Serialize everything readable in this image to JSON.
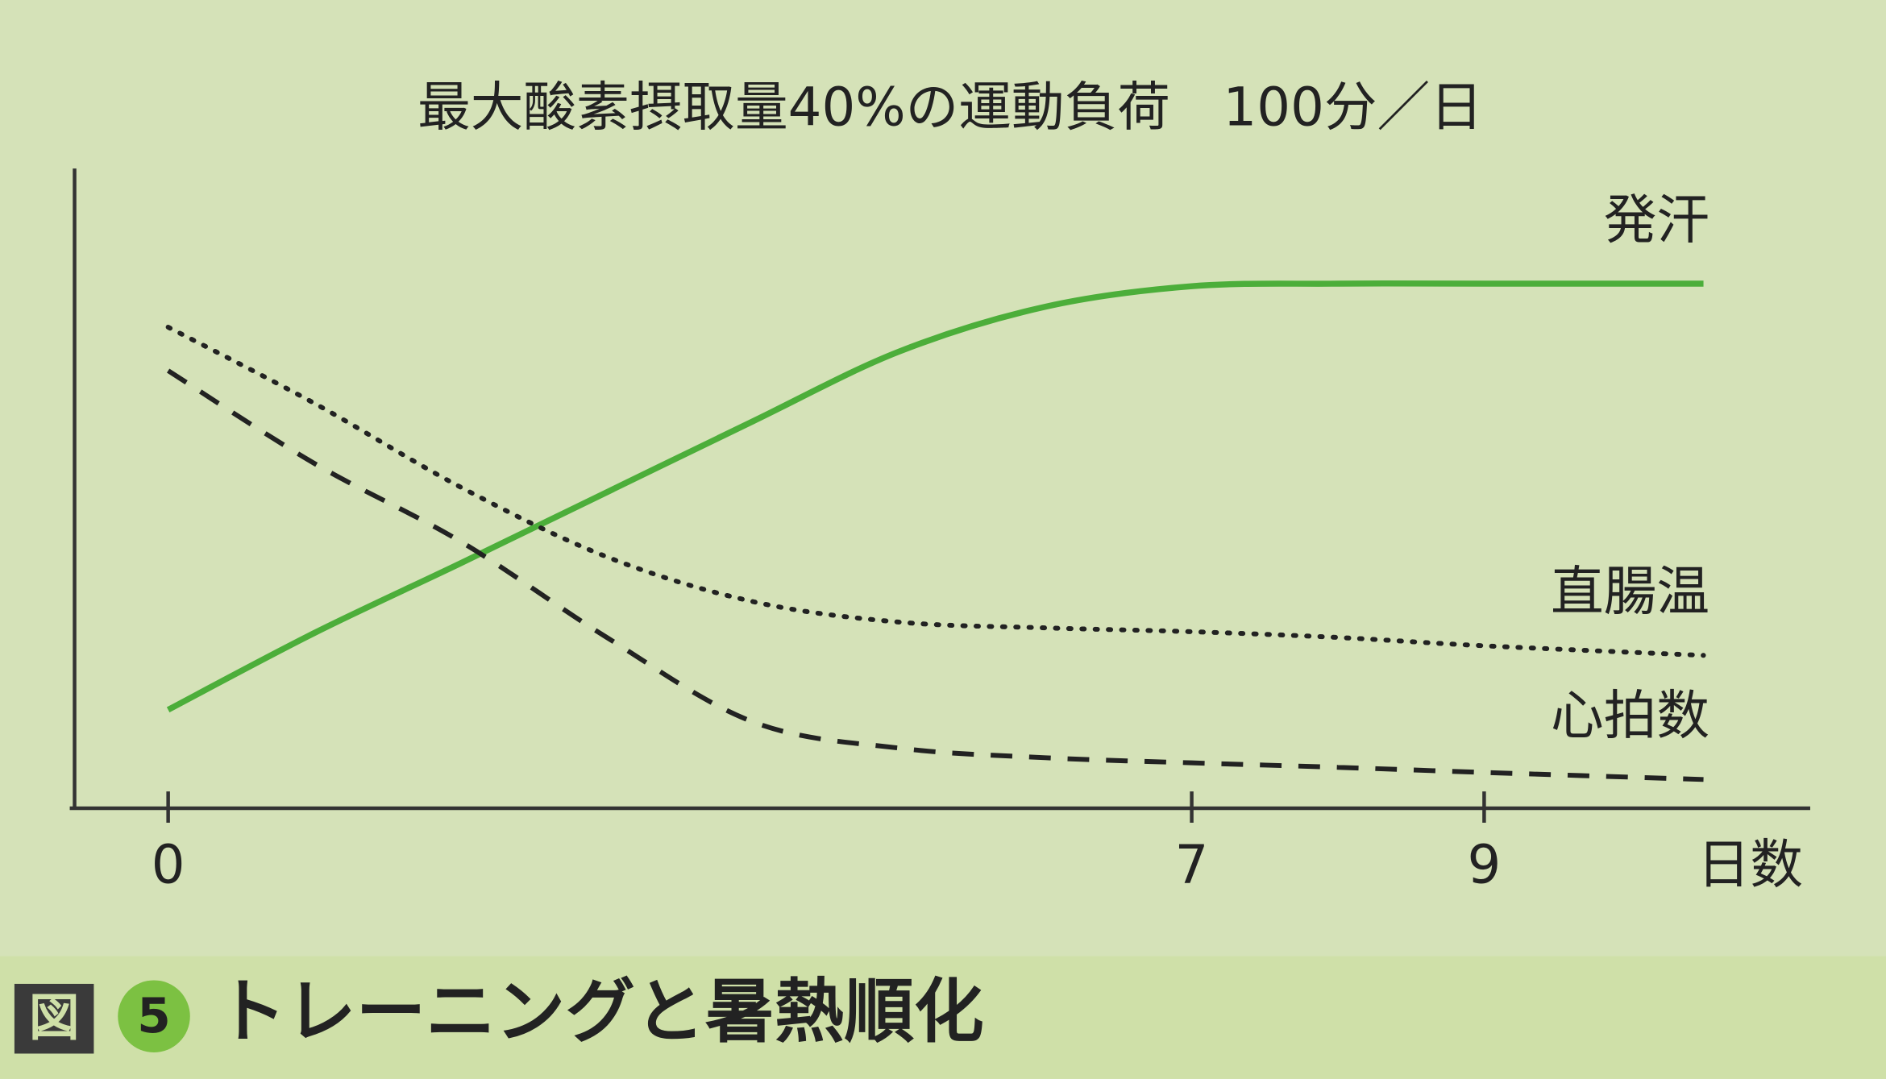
{
  "chart_data": {
    "type": "line",
    "title": "最大酸素摂取量40%の運動負荷　100分／日",
    "xlabel": "日数",
    "x": [
      0,
      1,
      2,
      3,
      4,
      5,
      6,
      7,
      8,
      9,
      10.5
    ],
    "xlim": [
      -0.64,
      11.23
    ],
    "xticks": [
      0,
      7,
      9
    ],
    "ylim": [
      0,
      100
    ],
    "series": [
      {
        "name": "発汗",
        "color": "#4cae3a",
        "style": "solid",
        "values": [
          15.4,
          27.4,
          38.3,
          49.4,
          60.5,
          71.4,
          78.4,
          81.6,
          82,
          82,
          82
        ]
      },
      {
        "name": "直腸温",
        "color": "#222222",
        "style": "dotted",
        "values": [
          75.2,
          63.3,
          50.2,
          39.3,
          32.3,
          29.1,
          28.2,
          27.6,
          26.7,
          25.4,
          23.9
        ]
      },
      {
        "name": "心拍数",
        "color": "#222222",
        "style": "dashed",
        "values": [
          68.4,
          53.9,
          41.7,
          26.7,
          13.5,
          9.4,
          7.9,
          7.1,
          6.4,
          5.6,
          4.5
        ]
      }
    ],
    "figure_label": "図",
    "figure_number": "5",
    "caption": "トレーニングと暑熱順化"
  }
}
